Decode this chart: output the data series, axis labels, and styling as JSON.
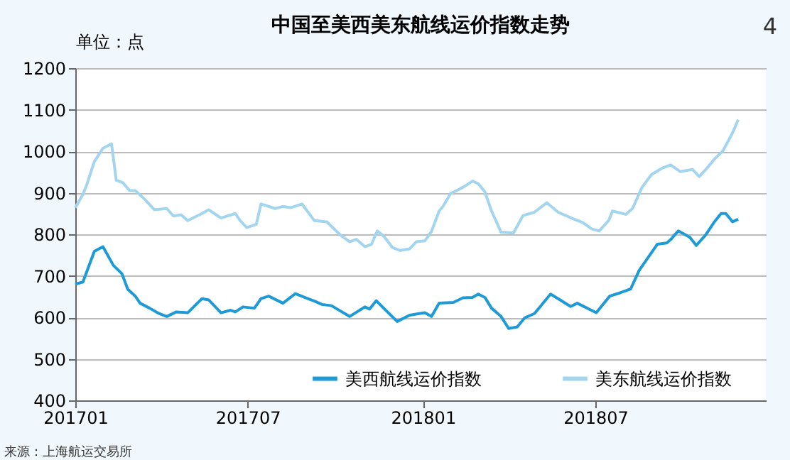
{
  "chart_data": {
    "type": "line",
    "title": "中国至美西美东航线运价指数走势",
    "ylabel": "单位：点",
    "annotations": [
      "4",
      "来源：上海航运交易所"
    ],
    "xlim": [
      "2017-01-01",
      "2018-12-27"
    ],
    "xticks": [
      {
        "value": "2017-01-01",
        "label": "201701"
      },
      {
        "value": "2017-07-01",
        "label": "201707"
      },
      {
        "value": "2018-01-01",
        "label": "201801"
      },
      {
        "value": "2018-07-01",
        "label": "201807"
      }
    ],
    "ylim": [
      400,
      1200
    ],
    "yticks": [
      400,
      500,
      600,
      700,
      800,
      900,
      1000,
      1100,
      1200
    ],
    "grid": "y",
    "legend": "bottom",
    "line_style": "solid",
    "marker": "none",
    "series": [
      {
        "name": "美西航线运价指数",
        "color": "#1e9ad6",
        "x": [
          "2017-01-01",
          "2017-01-09",
          "2017-01-21",
          "2017-01-30",
          "2017-02-10",
          "2017-02-19",
          "2017-02-25",
          "2017-03-05",
          "2017-03-10",
          "2017-03-20",
          "2017-03-30",
          "2017-04-07",
          "2017-04-17",
          "2017-04-29",
          "2017-05-14",
          "2017-05-21",
          "2017-06-03",
          "2017-06-13",
          "2017-06-18",
          "2017-06-26",
          "2017-07-08",
          "2017-07-15",
          "2017-07-23",
          "2017-08-07",
          "2017-08-20",
          "2017-09-02",
          "2017-09-09",
          "2017-09-17",
          "2017-09-27",
          "2017-10-16",
          "2017-11-01",
          "2017-11-06",
          "2017-11-13",
          "2017-11-23",
          "2017-12-05",
          "2017-12-18",
          "2017-12-28",
          "2018-01-03",
          "2018-01-10",
          "2018-01-18",
          "2018-02-02",
          "2018-02-12",
          "2018-02-22",
          "2018-02-28",
          "2018-03-07",
          "2018-03-14",
          "2018-03-24",
          "2018-04-01",
          "2018-04-10",
          "2018-04-18",
          "2018-04-28",
          "2018-05-15",
          "2018-05-25",
          "2018-06-05",
          "2018-06-12",
          "2018-07-02",
          "2018-07-16",
          "2018-07-27",
          "2018-08-07",
          "2018-08-16",
          "2018-09-04",
          "2018-09-14",
          "2018-09-18",
          "2018-09-26",
          "2018-10-08",
          "2018-10-15",
          "2018-10-25",
          "2018-11-03",
          "2018-11-10",
          "2018-11-15",
          "2018-11-22",
          "2018-11-28"
        ],
        "values": [
          680,
          685,
          759,
          770,
          725,
          705,
          668,
          651,
          634,
          622,
          609,
          602,
          613,
          611,
          645,
          642,
          611,
          617,
          613,
          625,
          622,
          645,
          651,
          634,
          657,
          645,
          639,
          631,
          628,
          602,
          625,
          620,
          640,
          617,
          590,
          605,
          609,
          611,
          602,
          634,
          636,
          647,
          648,
          656,
          648,
          622,
          602,
          573,
          577,
          599,
          609,
          656,
          642,
          626,
          634,
          611,
          651,
          659,
          668,
          713,
          776,
          779,
          787,
          808,
          793,
          773,
          799,
          830,
          850,
          850,
          830,
          836
        ]
      },
      {
        "name": "美东航线运价指数",
        "color": "#a3d5ef",
        "x": [
          "2017-01-01",
          "2017-01-09",
          "2017-01-13",
          "2017-01-21",
          "2017-01-30",
          "2017-02-08",
          "2017-02-13",
          "2017-02-20",
          "2017-02-27",
          "2017-03-05",
          "2017-03-15",
          "2017-03-25",
          "2017-04-07",
          "2017-04-14",
          "2017-04-22",
          "2017-04-29",
          "2017-05-14",
          "2017-05-21",
          "2017-06-03",
          "2017-06-18",
          "2017-06-23",
          "2017-06-30",
          "2017-07-10",
          "2017-07-15",
          "2017-07-30",
          "2017-08-07",
          "2017-08-15",
          "2017-08-27",
          "2017-09-09",
          "2017-09-22",
          "2017-10-06",
          "2017-10-16",
          "2017-10-23",
          "2017-11-01",
          "2017-11-08",
          "2017-11-14",
          "2017-11-21",
          "2017-11-30",
          "2017-12-08",
          "2017-12-18",
          "2017-12-25",
          "2018-01-03",
          "2018-01-10",
          "2018-01-18",
          "2018-01-22",
          "2018-01-30",
          "2018-02-12",
          "2018-02-22",
          "2018-02-28",
          "2018-03-07",
          "2018-03-14",
          "2018-03-24",
          "2018-04-06",
          "2018-04-16",
          "2018-04-28",
          "2018-05-11",
          "2018-05-23",
          "2018-06-08",
          "2018-06-18",
          "2018-06-27",
          "2018-07-05",
          "2018-07-15",
          "2018-07-19",
          "2018-08-02",
          "2018-08-09",
          "2018-08-19",
          "2018-08-29",
          "2018-09-09",
          "2018-09-18",
          "2018-09-28",
          "2018-10-11",
          "2018-10-18",
          "2018-10-25",
          "2018-11-03",
          "2018-11-12",
          "2018-11-22",
          "2018-11-28"
        ],
        "values": [
          864,
          896,
          919,
          975,
          1007,
          1018,
          930,
          924,
          905,
          905,
          884,
          859,
          862,
          844,
          847,
          833,
          850,
          859,
          839,
          850,
          833,
          816,
          824,
          873,
          862,
          867,
          864,
          873,
          833,
          830,
          799,
          782,
          788,
          770,
          776,
          808,
          795,
          768,
          761,
          765,
          782,
          784,
          807,
          856,
          867,
          898,
          913,
          928,
          922,
          902,
          856,
          805,
          803,
          845,
          853,
          876,
          853,
          837,
          828,
          813,
          808,
          833,
          856,
          848,
          862,
          913,
          944,
          959,
          967,
          951,
          956,
          939,
          956,
          981,
          1001,
          1044,
          1076
        ]
      }
    ]
  }
}
